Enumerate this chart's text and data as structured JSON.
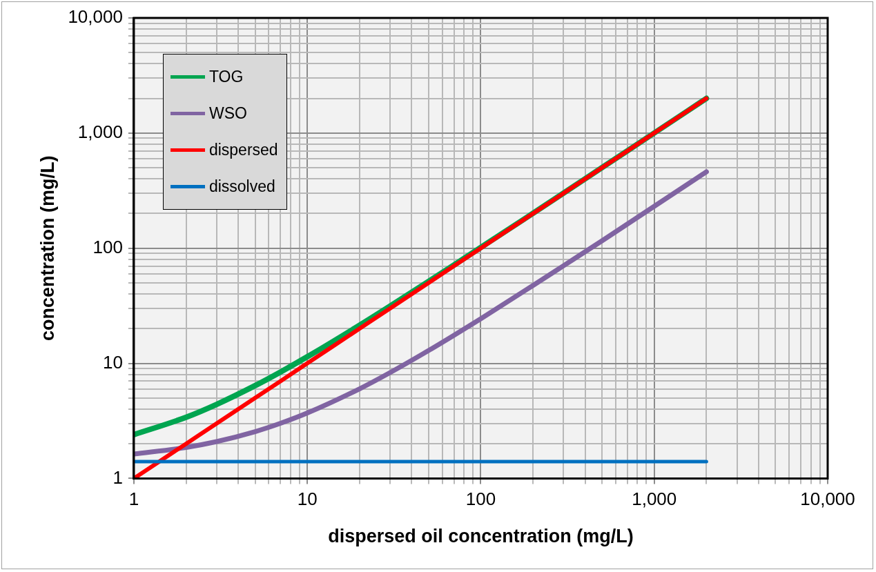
{
  "chart_data": {
    "type": "line",
    "xlabel": "dispersed oil concentration (mg/L)",
    "ylabel": "concentration (mg/L)",
    "log": "xy",
    "grid": true,
    "legend": "top left",
    "marker": "none",
    "line_style": "solid",
    "xlim": [
      1,
      10000
    ],
    "ylim": [
      1,
      10000
    ],
    "xticks": [
      1,
      {
        "value": 2,
        "label": null
      },
      {
        "value": 3,
        "label": null
      },
      {
        "value": 4,
        "label": null
      },
      {
        "value": 5,
        "label": null
      },
      {
        "value": 6,
        "label": null
      },
      {
        "value": 7,
        "label": null
      },
      {
        "value": 8,
        "label": null
      },
      {
        "value": 9,
        "label": null
      },
      10,
      {
        "value": 20,
        "label": null
      },
      {
        "value": 30,
        "label": null
      },
      {
        "value": 40,
        "label": null
      },
      {
        "value": 50,
        "label": null
      },
      {
        "value": 60,
        "label": null
      },
      {
        "value": 70,
        "label": null
      },
      {
        "value": 80,
        "label": null
      },
      {
        "value": 90,
        "label": null
      },
      100,
      {
        "value": 200,
        "label": null
      },
      {
        "value": 300,
        "label": null
      },
      {
        "value": 400,
        "label": null
      },
      {
        "value": 500,
        "label": null
      },
      {
        "value": 600,
        "label": null
      },
      {
        "value": 700,
        "label": null
      },
      {
        "value": 800,
        "label": null
      },
      {
        "value": 900,
        "label": null
      },
      {
        "value": 1000,
        "label": "1,000"
      },
      {
        "value": 2000,
        "label": null
      },
      {
        "value": 3000,
        "label": null
      },
      {
        "value": 4000,
        "label": null
      },
      {
        "value": 5000,
        "label": null
      },
      {
        "value": 6000,
        "label": null
      },
      {
        "value": 7000,
        "label": null
      },
      {
        "value": 8000,
        "label": null
      },
      {
        "value": 9000,
        "label": null
      },
      {
        "value": 10000,
        "label": "10,000"
      }
    ],
    "yticks": [
      1,
      {
        "value": 2,
        "label": null
      },
      {
        "value": 3,
        "label": null
      },
      {
        "value": 4,
        "label": null
      },
      {
        "value": 5,
        "label": null
      },
      {
        "value": 6,
        "label": null
      },
      {
        "value": 7,
        "label": null
      },
      {
        "value": 8,
        "label": null
      },
      {
        "value": 9,
        "label": null
      },
      10,
      {
        "value": 20,
        "label": null
      },
      {
        "value": 30,
        "label": null
      },
      {
        "value": 40,
        "label": null
      },
      {
        "value": 50,
        "label": null
      },
      {
        "value": 60,
        "label": null
      },
      {
        "value": 70,
        "label": null
      },
      {
        "value": 80,
        "label": null
      },
      {
        "value": 90,
        "label": null
      },
      100,
      {
        "value": 200,
        "label": null
      },
      {
        "value": 300,
        "label": null
      },
      {
        "value": 400,
        "label": null
      },
      {
        "value": 500,
        "label": null
      },
      {
        "value": 600,
        "label": null
      },
      {
        "value": 700,
        "label": null
      },
      {
        "value": 800,
        "label": null
      },
      {
        "value": 900,
        "label": null
      },
      {
        "value": 1000,
        "label": "1,000"
      },
      {
        "value": 2000,
        "label": null
      },
      {
        "value": 3000,
        "label": null
      },
      {
        "value": 4000,
        "label": null
      },
      {
        "value": 5000,
        "label": null
      },
      {
        "value": 6000,
        "label": null
      },
      {
        "value": 7000,
        "label": null
      },
      {
        "value": 8000,
        "label": null
      },
      {
        "value": 9000,
        "label": null
      },
      {
        "value": 10000,
        "label": "10,000"
      }
    ],
    "x": [
      1,
      2,
      3,
      5,
      7,
      10,
      20,
      30,
      50,
      70,
      100,
      200,
      300,
      500,
      700,
      1000,
      2000
    ],
    "series": [
      {
        "name": "TOG",
        "color": "#00a550",
        "values": [
          2.4,
          3.4,
          4.4,
          6.4,
          8.4,
          11.4,
          21.4,
          31.4,
          51.4,
          71.4,
          101.4,
          201,
          301,
          501,
          701,
          1001,
          2001
        ]
      },
      {
        "name": "WSO",
        "color": "#8064a2",
        "values": [
          1.63,
          1.86,
          2.09,
          2.55,
          3.01,
          3.7,
          6.0,
          8.3,
          12.9,
          17.5,
          24.4,
          47.4,
          70.4,
          116,
          162,
          231,
          461
        ]
      },
      {
        "name": "dispersed",
        "color": "#ff0000",
        "values": [
          1,
          2,
          3,
          5,
          7,
          10,
          20,
          30,
          50,
          70,
          100,
          200,
          300,
          500,
          700,
          1000,
          2000
        ]
      },
      {
        "name": "dissolved",
        "color": "#0070c0",
        "values": [
          1.4,
          1.4,
          1.4,
          1.4,
          1.4,
          1.4,
          1.4,
          1.4,
          1.4,
          1.4,
          1.4,
          1.4,
          1.4,
          1.4,
          1.4,
          1.4,
          1.4
        ]
      }
    ]
  }
}
